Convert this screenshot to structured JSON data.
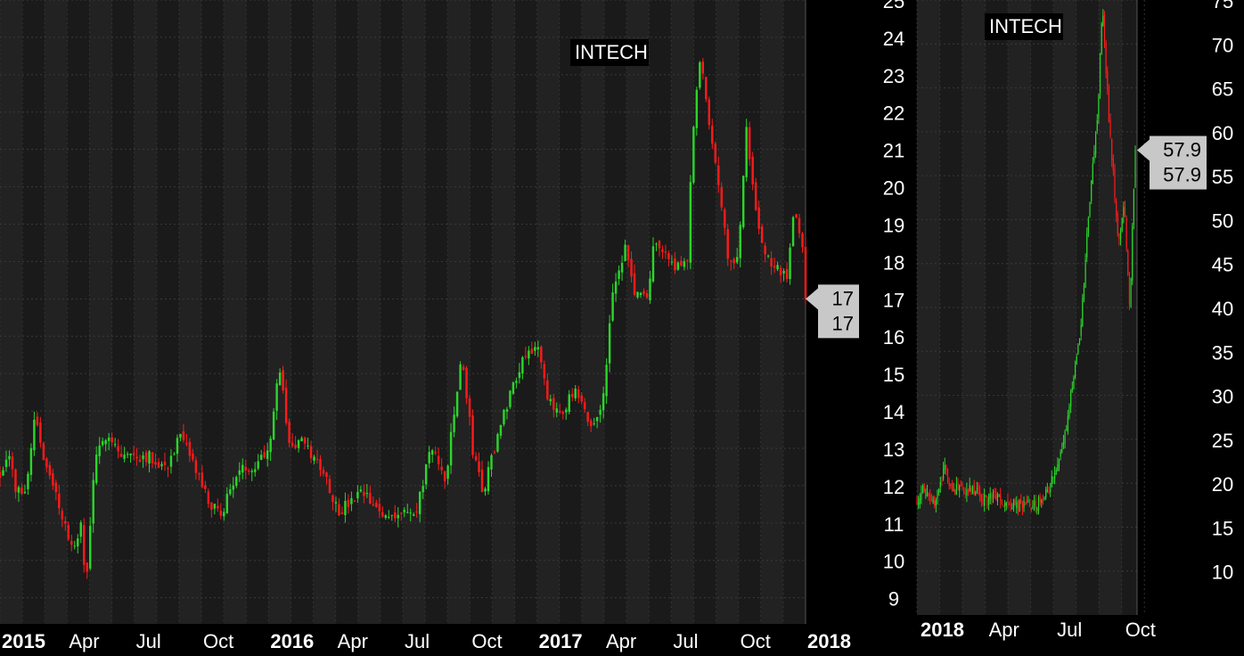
{
  "chart_data": [
    {
      "type": "candlestick",
      "title": "INTECH",
      "ylim": [
        8.3,
        25
      ],
      "y_ticks": [
        9,
        10,
        11,
        12,
        13,
        14,
        15,
        16,
        17,
        18,
        19,
        20,
        21,
        22,
        23,
        24,
        25
      ],
      "x_labels": [
        {
          "label": "2015",
          "bold": true,
          "t": 0.0
        },
        {
          "label": "Apr",
          "bold": false,
          "t": 0.25
        },
        {
          "label": "Jul",
          "bold": false,
          "t": 0.5
        },
        {
          "label": "Oct",
          "bold": false,
          "t": 0.75
        },
        {
          "label": "2016",
          "bold": true,
          "t": 1.0
        },
        {
          "label": "Apr",
          "bold": false,
          "t": 1.25
        },
        {
          "label": "Jul",
          "bold": false,
          "t": 1.5
        },
        {
          "label": "Oct",
          "bold": false,
          "t": 1.75
        },
        {
          "label": "2017",
          "bold": true,
          "t": 2.0
        },
        {
          "label": "Apr",
          "bold": false,
          "t": 2.25
        },
        {
          "label": "Jul",
          "bold": false,
          "t": 2.5
        },
        {
          "label": "Oct",
          "bold": false,
          "t": 2.75
        },
        {
          "label": "2018",
          "bold": true,
          "t": 3.0
        }
      ],
      "x_range": [
        0,
        3.0
      ],
      "last_price_labels": [
        "17",
        "17"
      ],
      "last_price": 17,
      "anchors": [
        [
          0.0,
          12.3
        ],
        [
          0.03,
          13.0
        ],
        [
          0.06,
          11.8
        ],
        [
          0.1,
          12.0
        ],
        [
          0.13,
          14.0
        ],
        [
          0.17,
          12.5
        ],
        [
          0.22,
          11.5
        ],
        [
          0.27,
          10.2
        ],
        [
          0.3,
          11.0
        ],
        [
          0.32,
          9.2
        ],
        [
          0.35,
          12.5
        ],
        [
          0.4,
          13.5
        ],
        [
          0.45,
          12.8
        ],
        [
          0.55,
          12.8
        ],
        [
          0.62,
          12.5
        ],
        [
          0.67,
          13.3
        ],
        [
          0.72,
          12.6
        ],
        [
          0.78,
          11.5
        ],
        [
          0.82,
          11.2
        ],
        [
          0.88,
          12.3
        ],
        [
          0.95,
          12.6
        ],
        [
          1.0,
          13.0
        ],
        [
          1.04,
          15.2
        ],
        [
          1.08,
          13.0
        ],
        [
          1.12,
          13.2
        ],
        [
          1.16,
          12.8
        ],
        [
          1.2,
          12.5
        ],
        [
          1.26,
          11.3
        ],
        [
          1.3,
          11.5
        ],
        [
          1.35,
          11.8
        ],
        [
          1.42,
          11.2
        ],
        [
          1.5,
          11.3
        ],
        [
          1.55,
          11.2
        ],
        [
          1.6,
          13.0
        ],
        [
          1.66,
          12.2
        ],
        [
          1.72,
          15.5
        ],
        [
          1.76,
          13.0
        ],
        [
          1.8,
          11.8
        ],
        [
          1.84,
          13.0
        ],
        [
          1.9,
          14.5
        ],
        [
          1.95,
          15.5
        ],
        [
          2.0,
          15.8
        ],
        [
          2.04,
          14.2
        ],
        [
          2.09,
          14.0
        ],
        [
          2.14,
          14.5
        ],
        [
          2.2,
          13.6
        ],
        [
          2.24,
          14.0
        ],
        [
          2.28,
          17.0
        ],
        [
          2.33,
          18.4
        ],
        [
          2.36,
          17.2
        ],
        [
          2.41,
          17.0
        ],
        [
          2.44,
          18.7
        ],
        [
          2.48,
          18.1
        ],
        [
          2.52,
          17.9
        ],
        [
          2.56,
          18.0
        ],
        [
          2.58,
          21.5
        ],
        [
          2.61,
          23.6
        ],
        [
          2.64,
          21.8
        ],
        [
          2.68,
          20.0
        ],
        [
          2.71,
          18.0
        ],
        [
          2.75,
          18.2
        ],
        [
          2.78,
          21.5
        ],
        [
          2.82,
          19.0
        ],
        [
          2.86,
          18.0
        ],
        [
          2.9,
          17.8
        ],
        [
          2.93,
          17.5
        ],
        [
          2.96,
          19.5
        ],
        [
          2.99,
          18.3
        ],
        [
          3.0,
          17.0
        ]
      ]
    },
    {
      "type": "candlestick",
      "title": "INTECH",
      "ylim": [
        5,
        75
      ],
      "y_ticks": [
        10,
        15,
        20,
        25,
        30,
        35,
        40,
        45,
        50,
        55,
        60,
        65,
        70,
        75
      ],
      "x_labels": [
        {
          "label": "2018",
          "bold": true,
          "t": 0.0
        },
        {
          "label": "Apr",
          "bold": false,
          "t": 0.25
        },
        {
          "label": "Jul",
          "bold": false,
          "t": 0.5
        },
        {
          "label": "Oct",
          "bold": false,
          "t": 0.75
        }
      ],
      "x_range": [
        0,
        0.8
      ],
      "last_price_labels": [
        "57.9",
        "57.9"
      ],
      "last_price": 57.9,
      "anchors": [
        [
          0.0,
          18.0
        ],
        [
          0.02,
          19.5
        ],
        [
          0.05,
          17.5
        ],
        [
          0.07,
          18.0
        ],
        [
          0.1,
          21.5
        ],
        [
          0.13,
          19.5
        ],
        [
          0.17,
          19.0
        ],
        [
          0.2,
          19.5
        ],
        [
          0.25,
          18.0
        ],
        [
          0.28,
          18.5
        ],
        [
          0.32,
          17.5
        ],
        [
          0.38,
          17.5
        ],
        [
          0.43,
          17.3
        ],
        [
          0.47,
          18.5
        ],
        [
          0.52,
          22.0
        ],
        [
          0.55,
          27.0
        ],
        [
          0.58,
          34.0
        ],
        [
          0.6,
          37.0
        ],
        [
          0.62,
          47.0
        ],
        [
          0.64,
          55.0
        ],
        [
          0.66,
          61.0
        ],
        [
          0.68,
          74.0
        ],
        [
          0.7,
          63.0
        ],
        [
          0.72,
          55.0
        ],
        [
          0.74,
          47.0
        ],
        [
          0.76,
          52.0
        ],
        [
          0.78,
          39.0
        ],
        [
          0.79,
          50.0
        ],
        [
          0.8,
          57.9
        ]
      ]
    }
  ]
}
